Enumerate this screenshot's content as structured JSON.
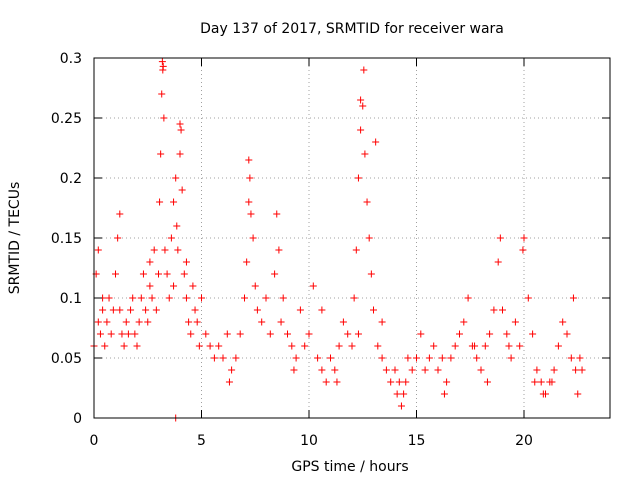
{
  "chart_data": {
    "type": "scatter",
    "title": "Day 137 of 2017, SRMTID for receiver wara",
    "xlabel": "GPS time / hours",
    "ylabel": "SRMTID / TECUs",
    "xlim": [
      0,
      24
    ],
    "ylim": [
      0,
      0.3
    ],
    "x_ticks": [
      0,
      5,
      10,
      15,
      20
    ],
    "x_tick_labels": [
      "0",
      "5",
      "10",
      "15",
      "20"
    ],
    "y_ticks": [
      0,
      0.05,
      0.1,
      0.15,
      0.2,
      0.25,
      0.3
    ],
    "y_tick_labels": [
      "0",
      "0.05",
      "0.1",
      "0.15",
      "0.2",
      "0.25",
      "0.3"
    ],
    "grid": true,
    "marker": "+",
    "color": "#ff0000",
    "series": [
      {
        "name": "SRMTID",
        "x": [
          0.0,
          0.1,
          0.2,
          0.3,
          0.4,
          0.5,
          0.6,
          0.7,
          0.8,
          0.9,
          1.0,
          1.1,
          1.2,
          1.3,
          1.4,
          1.5,
          1.6,
          1.7,
          1.8,
          1.9,
          2.0,
          2.1,
          2.2,
          2.3,
          2.4,
          2.5,
          2.6,
          2.7,
          2.8,
          2.9,
          3.0,
          3.05,
          3.1,
          3.15,
          3.2,
          3.25,
          3.3,
          3.4,
          3.5,
          3.6,
          3.7,
          3.8,
          3.85,
          3.9,
          4.0,
          4.05,
          4.1,
          4.2,
          4.3,
          4.4,
          4.5,
          4.6,
          4.7,
          4.8,
          4.9,
          5.0,
          5.2,
          5.4,
          5.6,
          5.8,
          6.0,
          6.2,
          6.4,
          6.6,
          6.8,
          7.0,
          7.1,
          7.2,
          7.25,
          7.3,
          7.4,
          7.5,
          7.6,
          7.8,
          8.0,
          8.2,
          8.4,
          8.5,
          8.6,
          8.8,
          9.0,
          9.2,
          9.4,
          9.6,
          9.8,
          10.0,
          10.2,
          10.4,
          10.6,
          10.8,
          11.0,
          11.2,
          11.4,
          11.6,
          11.8,
          12.0,
          12.1,
          12.2,
          12.3,
          12.4,
          12.5,
          12.6,
          12.7,
          12.8,
          12.9,
          13.0,
          13.2,
          13.4,
          13.6,
          13.8,
          14.0,
          14.2,
          14.4,
          14.6,
          14.8,
          15.0,
          15.2,
          15.4,
          15.6,
          15.8,
          16.0,
          16.2,
          16.4,
          16.6,
          16.8,
          17.0,
          17.2,
          17.4,
          17.6,
          17.8,
          18.0,
          18.2,
          18.4,
          18.6,
          18.8,
          18.9,
          19.0,
          19.2,
          19.4,
          19.6,
          19.8,
          19.95,
          20.0,
          20.2,
          20.4,
          20.6,
          20.8,
          21.0,
          21.2,
          21.4,
          21.6,
          21.8,
          22.0,
          22.2,
          22.4,
          22.6,
          22.7,
          3.18,
          3.22,
          4.0,
          7.2,
          12.4,
          12.55,
          3.8,
          13.1,
          0.2,
          0.4,
          1.2,
          2.6,
          3.7,
          4.3,
          6.3,
          8.7,
          9.3,
          10.6,
          11.3,
          12.3,
          13.4,
          14.1,
          14.3,
          14.5,
          16.3,
          17.7,
          18.3,
          19.3,
          20.5,
          20.9,
          21.3,
          22.3,
          22.5
        ],
        "y": [
          0.06,
          0.12,
          0.08,
          0.07,
          0.09,
          0.06,
          0.08,
          0.1,
          0.07,
          0.09,
          0.12,
          0.15,
          0.09,
          0.07,
          0.06,
          0.08,
          0.07,
          0.09,
          0.1,
          0.07,
          0.06,
          0.08,
          0.1,
          0.12,
          0.09,
          0.08,
          0.11,
          0.1,
          0.14,
          0.09,
          0.12,
          0.18,
          0.22,
          0.27,
          0.29,
          0.25,
          0.14,
          0.12,
          0.1,
          0.15,
          0.18,
          0.2,
          0.16,
          0.14,
          0.22,
          0.24,
          0.19,
          0.12,
          0.1,
          0.08,
          0.07,
          0.11,
          0.09,
          0.08,
          0.06,
          0.1,
          0.07,
          0.06,
          0.05,
          0.06,
          0.05,
          0.07,
          0.04,
          0.05,
          0.07,
          0.1,
          0.13,
          0.18,
          0.2,
          0.17,
          0.15,
          0.11,
          0.09,
          0.08,
          0.1,
          0.07,
          0.12,
          0.17,
          0.14,
          0.1,
          0.07,
          0.06,
          0.05,
          0.09,
          0.06,
          0.07,
          0.11,
          0.05,
          0.04,
          0.03,
          0.05,
          0.04,
          0.06,
          0.08,
          0.07,
          0.06,
          0.1,
          0.14,
          0.2,
          0.24,
          0.26,
          0.22,
          0.18,
          0.15,
          0.12,
          0.09,
          0.06,
          0.05,
          0.04,
          0.03,
          0.04,
          0.03,
          0.02,
          0.05,
          0.04,
          0.05,
          0.07,
          0.04,
          0.05,
          0.06,
          0.04,
          0.05,
          0.03,
          0.05,
          0.06,
          0.07,
          0.08,
          0.1,
          0.06,
          0.05,
          0.04,
          0.06,
          0.07,
          0.09,
          0.13,
          0.15,
          0.09,
          0.07,
          0.05,
          0.08,
          0.06,
          0.14,
          0.15,
          0.1,
          0.07,
          0.04,
          0.03,
          0.02,
          0.03,
          0.04,
          0.06,
          0.08,
          0.07,
          0.05,
          0.04,
          0.05,
          0.04,
          0.297,
          0.293,
          0.245,
          0.215,
          0.265,
          0.29,
          0.0,
          0.23,
          0.14,
          0.1,
          0.17,
          0.13,
          0.11,
          0.13,
          0.03,
          0.08,
          0.04,
          0.09,
          0.03,
          0.07,
          0.08,
          0.02,
          0.01,
          0.03,
          0.02,
          0.06,
          0.03,
          0.06,
          0.03,
          0.02,
          0.03,
          0.1,
          0.02
        ]
      }
    ]
  }
}
